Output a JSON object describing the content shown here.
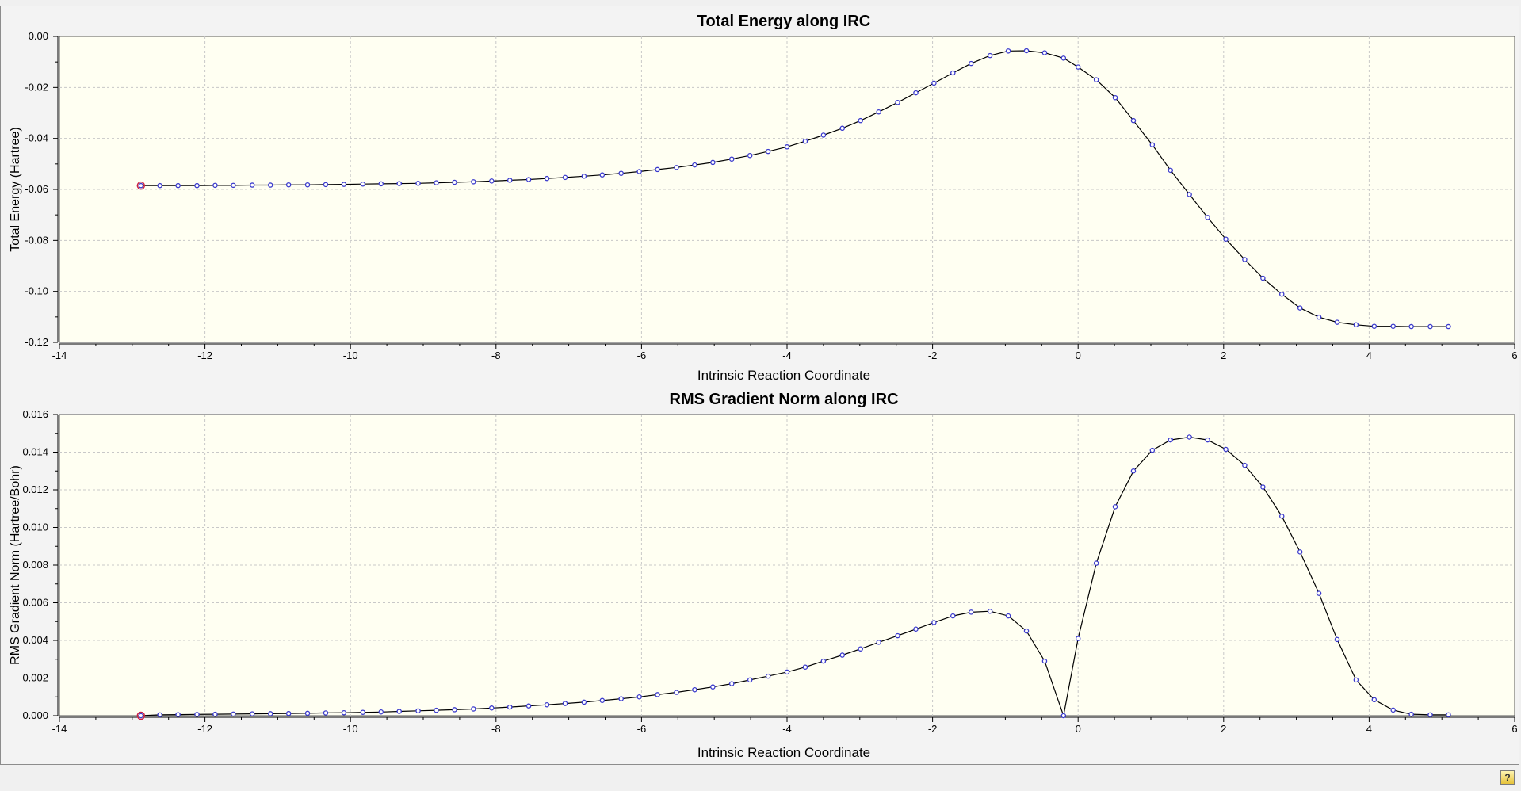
{
  "help_icon": "?",
  "chart_data": [
    {
      "type": "line",
      "title": "Total Energy along IRC",
      "xlabel": "Intrinsic Reaction Coordinate",
      "ylabel": "Total Energy (Hartree)",
      "xlim": [
        -14,
        6
      ],
      "ylim": [
        -0.12,
        0.0
      ],
      "xticks": [
        -14,
        -12,
        -10,
        -8,
        -6,
        -4,
        -2,
        0,
        2,
        4,
        6
      ],
      "xtick_labels": [
        "-14",
        "-12",
        "-10",
        "-8",
        "-6",
        "-4",
        "-2",
        "0",
        "2",
        "4",
        "6"
      ],
      "yticks": [
        0.0,
        -0.02,
        -0.04,
        -0.06,
        -0.08,
        -0.1,
        -0.12
      ],
      "ytick_labels": [
        "0.00",
        "-0.02",
        "-0.04",
        "-0.06",
        "-0.08",
        "-0.10",
        "-0.12"
      ],
      "grid": true,
      "series_color": "#000000",
      "marker_color": "#3a3acc",
      "highlight_color": "#cc2244",
      "highlight_index": 0,
      "x": [
        -12.88,
        -12.62,
        -12.37,
        -12.11,
        -11.86,
        -11.61,
        -11.35,
        -11.1,
        -10.85,
        -10.59,
        -10.34,
        -10.09,
        -9.83,
        -9.58,
        -9.33,
        -9.07,
        -8.82,
        -8.57,
        -8.31,
        -8.06,
        -7.81,
        -7.55,
        -7.3,
        -7.05,
        -6.79,
        -6.54,
        -6.28,
        -6.03,
        -5.78,
        -5.52,
        -5.27,
        -5.02,
        -4.76,
        -4.51,
        -4.26,
        -4.0,
        -3.75,
        -3.5,
        -3.24,
        -2.99,
        -2.74,
        -2.48,
        -2.23,
        -1.98,
        -1.72,
        -1.47,
        -1.21,
        -0.96,
        -0.71,
        -0.46,
        -0.2,
        0.0,
        0.25,
        0.51,
        0.76,
        1.02,
        1.27,
        1.53,
        1.78,
        2.03,
        2.29,
        2.54,
        2.8,
        3.05,
        3.31,
        3.56,
        3.82,
        4.07,
        4.33,
        4.58,
        4.84,
        5.09
      ],
      "y": [
        -0.0585,
        -0.0585,
        -0.0585,
        -0.0585,
        -0.0584,
        -0.0584,
        -0.0583,
        -0.0583,
        -0.0582,
        -0.0582,
        -0.0581,
        -0.058,
        -0.0579,
        -0.0578,
        -0.0577,
        -0.0576,
        -0.0574,
        -0.0572,
        -0.057,
        -0.0567,
        -0.0564,
        -0.0561,
        -0.0557,
        -0.0553,
        -0.0548,
        -0.0543,
        -0.0537,
        -0.053,
        -0.0522,
        -0.0514,
        -0.0504,
        -0.0494,
        -0.0481,
        -0.0467,
        -0.0451,
        -0.0433,
        -0.0411,
        -0.0387,
        -0.036,
        -0.033,
        -0.0296,
        -0.0259,
        -0.0221,
        -0.0183,
        -0.0143,
        -0.0106,
        -0.0075,
        -0.0057,
        -0.0056,
        -0.0064,
        -0.0085,
        -0.012,
        -0.017,
        -0.024,
        -0.033,
        -0.0425,
        -0.0525,
        -0.062,
        -0.071,
        -0.0795,
        -0.0875,
        -0.0948,
        -0.1011,
        -0.1065,
        -0.1101,
        -0.1121,
        -0.1131,
        -0.1137,
        -0.1137,
        -0.1138,
        -0.1138,
        -0.1138
      ]
    },
    {
      "type": "line",
      "title": "RMS Gradient Norm along IRC",
      "xlabel": "Intrinsic Reaction Coordinate",
      "ylabel": "RMS Gradient Norm (Hartree/Bohr)",
      "xlim": [
        -14,
        6
      ],
      "ylim": [
        0.0,
        0.016
      ],
      "xticks": [
        -14,
        -12,
        -10,
        -8,
        -6,
        -4,
        -2,
        0,
        2,
        4,
        6
      ],
      "xtick_labels": [
        "-14",
        "-12",
        "-10",
        "-8",
        "-6",
        "-4",
        "-2",
        "0",
        "2",
        "4",
        "6"
      ],
      "yticks": [
        0.0,
        0.002,
        0.004,
        0.006,
        0.008,
        0.01,
        0.012,
        0.014,
        0.016
      ],
      "ytick_labels": [
        "0.000",
        "0.002",
        "0.004",
        "0.006",
        "0.008",
        "0.010",
        "0.012",
        "0.014",
        "0.016"
      ],
      "grid": true,
      "series_color": "#000000",
      "marker_color": "#3a3acc",
      "highlight_color": "#cc2244",
      "highlight_index": 0,
      "x": [
        -12.88,
        -12.62,
        -12.37,
        -12.11,
        -11.86,
        -11.61,
        -11.35,
        -11.1,
        -10.85,
        -10.59,
        -10.34,
        -10.09,
        -9.83,
        -9.58,
        -9.33,
        -9.07,
        -8.82,
        -8.57,
        -8.31,
        -8.06,
        -7.81,
        -7.55,
        -7.3,
        -7.05,
        -6.79,
        -6.54,
        -6.28,
        -6.03,
        -5.78,
        -5.52,
        -5.27,
        -5.02,
        -4.76,
        -4.51,
        -4.26,
        -4.0,
        -3.75,
        -3.5,
        -3.24,
        -2.99,
        -2.74,
        -2.48,
        -2.23,
        -1.98,
        -1.72,
        -1.47,
        -1.21,
        -0.96,
        -0.71,
        -0.46,
        -0.2,
        0.0,
        0.25,
        0.51,
        0.76,
        1.02,
        1.27,
        1.53,
        1.78,
        2.03,
        2.29,
        2.54,
        2.8,
        3.05,
        3.31,
        3.56,
        3.82,
        4.07,
        4.33,
        4.58,
        4.84,
        5.09
      ],
      "y": [
        0.0,
        5e-05,
        6e-05,
        7e-05,
        8e-05,
        9e-05,
        0.0001,
        0.00011,
        0.00012,
        0.00013,
        0.00015,
        0.00016,
        0.00018,
        0.0002,
        0.00023,
        0.00026,
        0.00029,
        0.00032,
        0.00036,
        0.00041,
        0.00046,
        0.00052,
        0.00058,
        0.00065,
        0.00072,
        0.00081,
        0.0009,
        0.001,
        0.00112,
        0.00124,
        0.00138,
        0.00153,
        0.0017,
        0.0019,
        0.0021,
        0.00232,
        0.00258,
        0.0029,
        0.00322,
        0.00355,
        0.0039,
        0.00425,
        0.0046,
        0.00495,
        0.0053,
        0.0055,
        0.00555,
        0.0053,
        0.0045,
        0.0029,
        0.0,
        0.0041,
        0.0081,
        0.0111,
        0.013,
        0.0141,
        0.01465,
        0.0148,
        0.01465,
        0.01415,
        0.0133,
        0.01215,
        0.0106,
        0.0087,
        0.0065,
        0.00405,
        0.0019,
        0.00085,
        0.0003,
        8e-05,
        5e-05,
        5e-05
      ]
    }
  ]
}
